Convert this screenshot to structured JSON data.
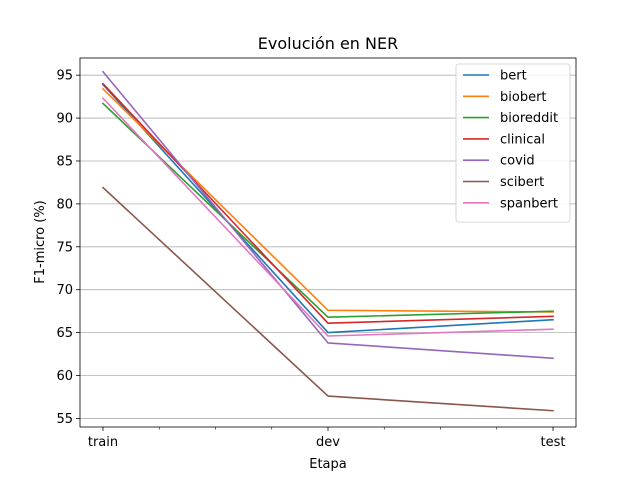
{
  "chart_data": {
    "type": "line",
    "title": "Evolución en NER",
    "xlabel": "Etapa",
    "ylabel": "F1-micro (%)",
    "categories": [
      "train",
      "dev",
      "test"
    ],
    "ylim": [
      54,
      97
    ],
    "yticks": [
      55,
      60,
      65,
      70,
      75,
      80,
      85,
      90,
      95
    ],
    "grid": "horizontal",
    "legend_position": "top-right",
    "series": [
      {
        "name": "bert",
        "color": "#1f77b4",
        "values": [
          93.9,
          65.0,
          66.5
        ]
      },
      {
        "name": "biobert",
        "color": "#ff7f0e",
        "values": [
          93.4,
          67.6,
          67.4
        ]
      },
      {
        "name": "bioreddit",
        "color": "#2ca02c",
        "values": [
          91.7,
          66.8,
          67.5
        ]
      },
      {
        "name": "clinical",
        "color": "#d62728",
        "values": [
          94.0,
          66.1,
          66.9
        ]
      },
      {
        "name": "covid",
        "color": "#9467bd",
        "values": [
          95.4,
          63.8,
          62.0
        ]
      },
      {
        "name": "scibert",
        "color": "#8c564b",
        "values": [
          81.9,
          57.6,
          55.9
        ]
      },
      {
        "name": "spanbert",
        "color": "#e377c2",
        "values": [
          92.3,
          64.6,
          65.4
        ]
      }
    ]
  }
}
